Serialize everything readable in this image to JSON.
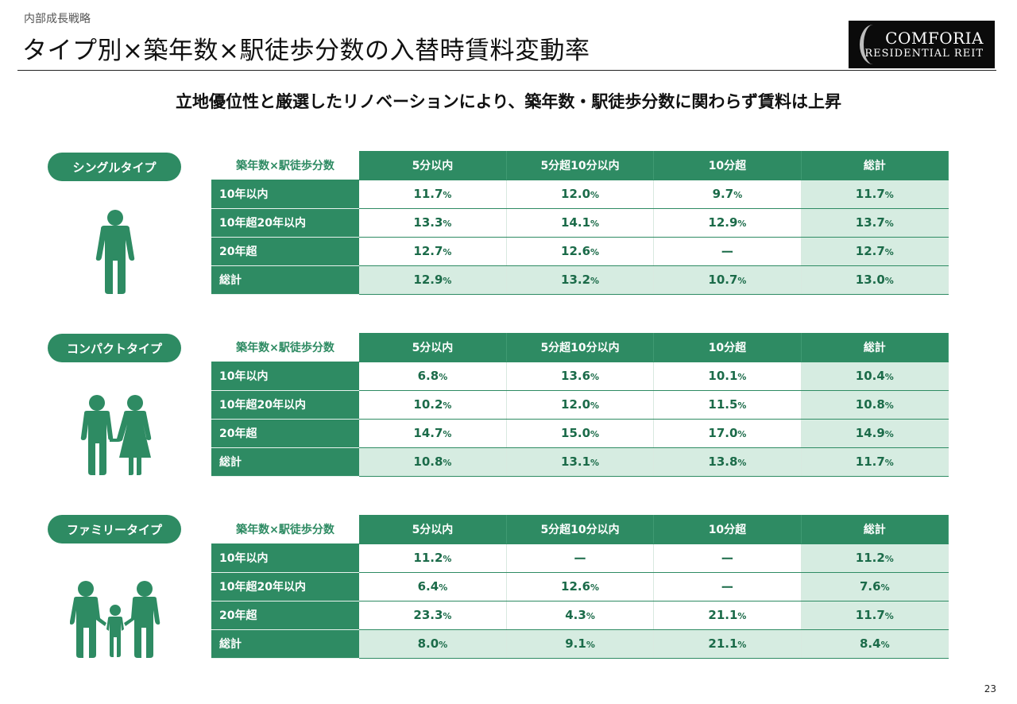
{
  "header": {
    "section_label": "内部成長戦略",
    "title": "タイプ別×築年数×駅徒歩分数の入替時賃料変動率",
    "logo_name": "COMFORIA",
    "logo_sub": "RESIDENTIAL REIT"
  },
  "subtitle": "立地優位性と厳選したリノベーションにより、築年数・駅徒歩分数に関わらず賃料は上昇",
  "tables": [
    {
      "type_label": "シングルタイプ",
      "icon": "single-person-icon",
      "corner": "築年数×駅徒歩分数",
      "columns": [
        "5分以内",
        "5分超10分以内",
        "10分超",
        "総計"
      ],
      "rows": [
        {
          "label": "10年以内",
          "cells": [
            {
              "v": "11.7",
              "u": "%"
            },
            {
              "v": "12.0",
              "u": "%"
            },
            {
              "v": "9.7",
              "u": "%"
            },
            {
              "v": "11.7",
              "u": "%"
            }
          ]
        },
        {
          "label": "10年超20年以内",
          "cells": [
            {
              "v": "13.3",
              "u": "%"
            },
            {
              "v": "14.1",
              "u": "%"
            },
            {
              "v": "12.9",
              "u": "%"
            },
            {
              "v": "13.7",
              "u": "%"
            }
          ]
        },
        {
          "label": "20年超",
          "cells": [
            {
              "v": "12.7",
              "u": "%"
            },
            {
              "v": "12.6",
              "u": "%"
            },
            {
              "v": "ー",
              "u": ""
            },
            {
              "v": "12.7",
              "u": "%"
            }
          ]
        },
        {
          "label": "総計",
          "cells": [
            {
              "v": "12.9",
              "u": "%"
            },
            {
              "v": "13.2",
              "u": "%"
            },
            {
              "v": "10.7",
              "u": "%"
            },
            {
              "v": "13.0",
              "u": "%"
            }
          ]
        }
      ]
    },
    {
      "type_label": "コンパクトタイプ",
      "icon": "couple-icon",
      "corner": "築年数×駅徒歩分数",
      "columns": [
        "5分以内",
        "5分超10分以内",
        "10分超",
        "総計"
      ],
      "rows": [
        {
          "label": "10年以内",
          "cells": [
            {
              "v": "6.8",
              "u": "%"
            },
            {
              "v": "13.6",
              "u": "%"
            },
            {
              "v": "10.1",
              "u": "%"
            },
            {
              "v": "10.4",
              "u": "%"
            }
          ]
        },
        {
          "label": "10年超20年以内",
          "cells": [
            {
              "v": "10.2",
              "u": "%"
            },
            {
              "v": "12.0",
              "u": "%"
            },
            {
              "v": "11.5",
              "u": "%"
            },
            {
              "v": "10.8",
              "u": "%"
            }
          ]
        },
        {
          "label": "20年超",
          "cells": [
            {
              "v": "14.7",
              "u": "%"
            },
            {
              "v": "15.0",
              "u": "%"
            },
            {
              "v": "17.0",
              "u": "%"
            },
            {
              "v": "14.9",
              "u": "%"
            }
          ]
        },
        {
          "label": "総計",
          "cells": [
            {
              "v": "10.8",
              "u": "%"
            },
            {
              "v": "13.1",
              "u": "%"
            },
            {
              "v": "13.8",
              "u": "%"
            },
            {
              "v": "11.7",
              "u": "%"
            }
          ]
        }
      ]
    },
    {
      "type_label": "ファミリータイプ",
      "icon": "family-icon",
      "corner": "築年数×駅徒歩分数",
      "columns": [
        "5分以内",
        "5分超10分以内",
        "10分超",
        "総計"
      ],
      "rows": [
        {
          "label": "10年以内",
          "cells": [
            {
              "v": "11.2",
              "u": "%"
            },
            {
              "v": "ー",
              "u": ""
            },
            {
              "v": "ー",
              "u": ""
            },
            {
              "v": "11.2",
              "u": "%"
            }
          ]
        },
        {
          "label": "10年超20年以内",
          "cells": [
            {
              "v": "6.4",
              "u": "%"
            },
            {
              "v": "12.6",
              "u": "%"
            },
            {
              "v": "ー",
              "u": ""
            },
            {
              "v": "7.6",
              "u": "%"
            }
          ]
        },
        {
          "label": "20年超",
          "cells": [
            {
              "v": "23.3",
              "u": "%"
            },
            {
              "v": "4.3",
              "u": "%"
            },
            {
              "v": "21.1",
              "u": "%"
            },
            {
              "v": "11.7",
              "u": "%"
            }
          ]
        },
        {
          "label": "総計",
          "cells": [
            {
              "v": "8.0",
              "u": "%"
            },
            {
              "v": "9.1",
              "u": "%"
            },
            {
              "v": "21.1",
              "u": "%"
            },
            {
              "v": "8.4",
              "u": "%"
            }
          ]
        }
      ]
    }
  ],
  "page_number": "23"
}
